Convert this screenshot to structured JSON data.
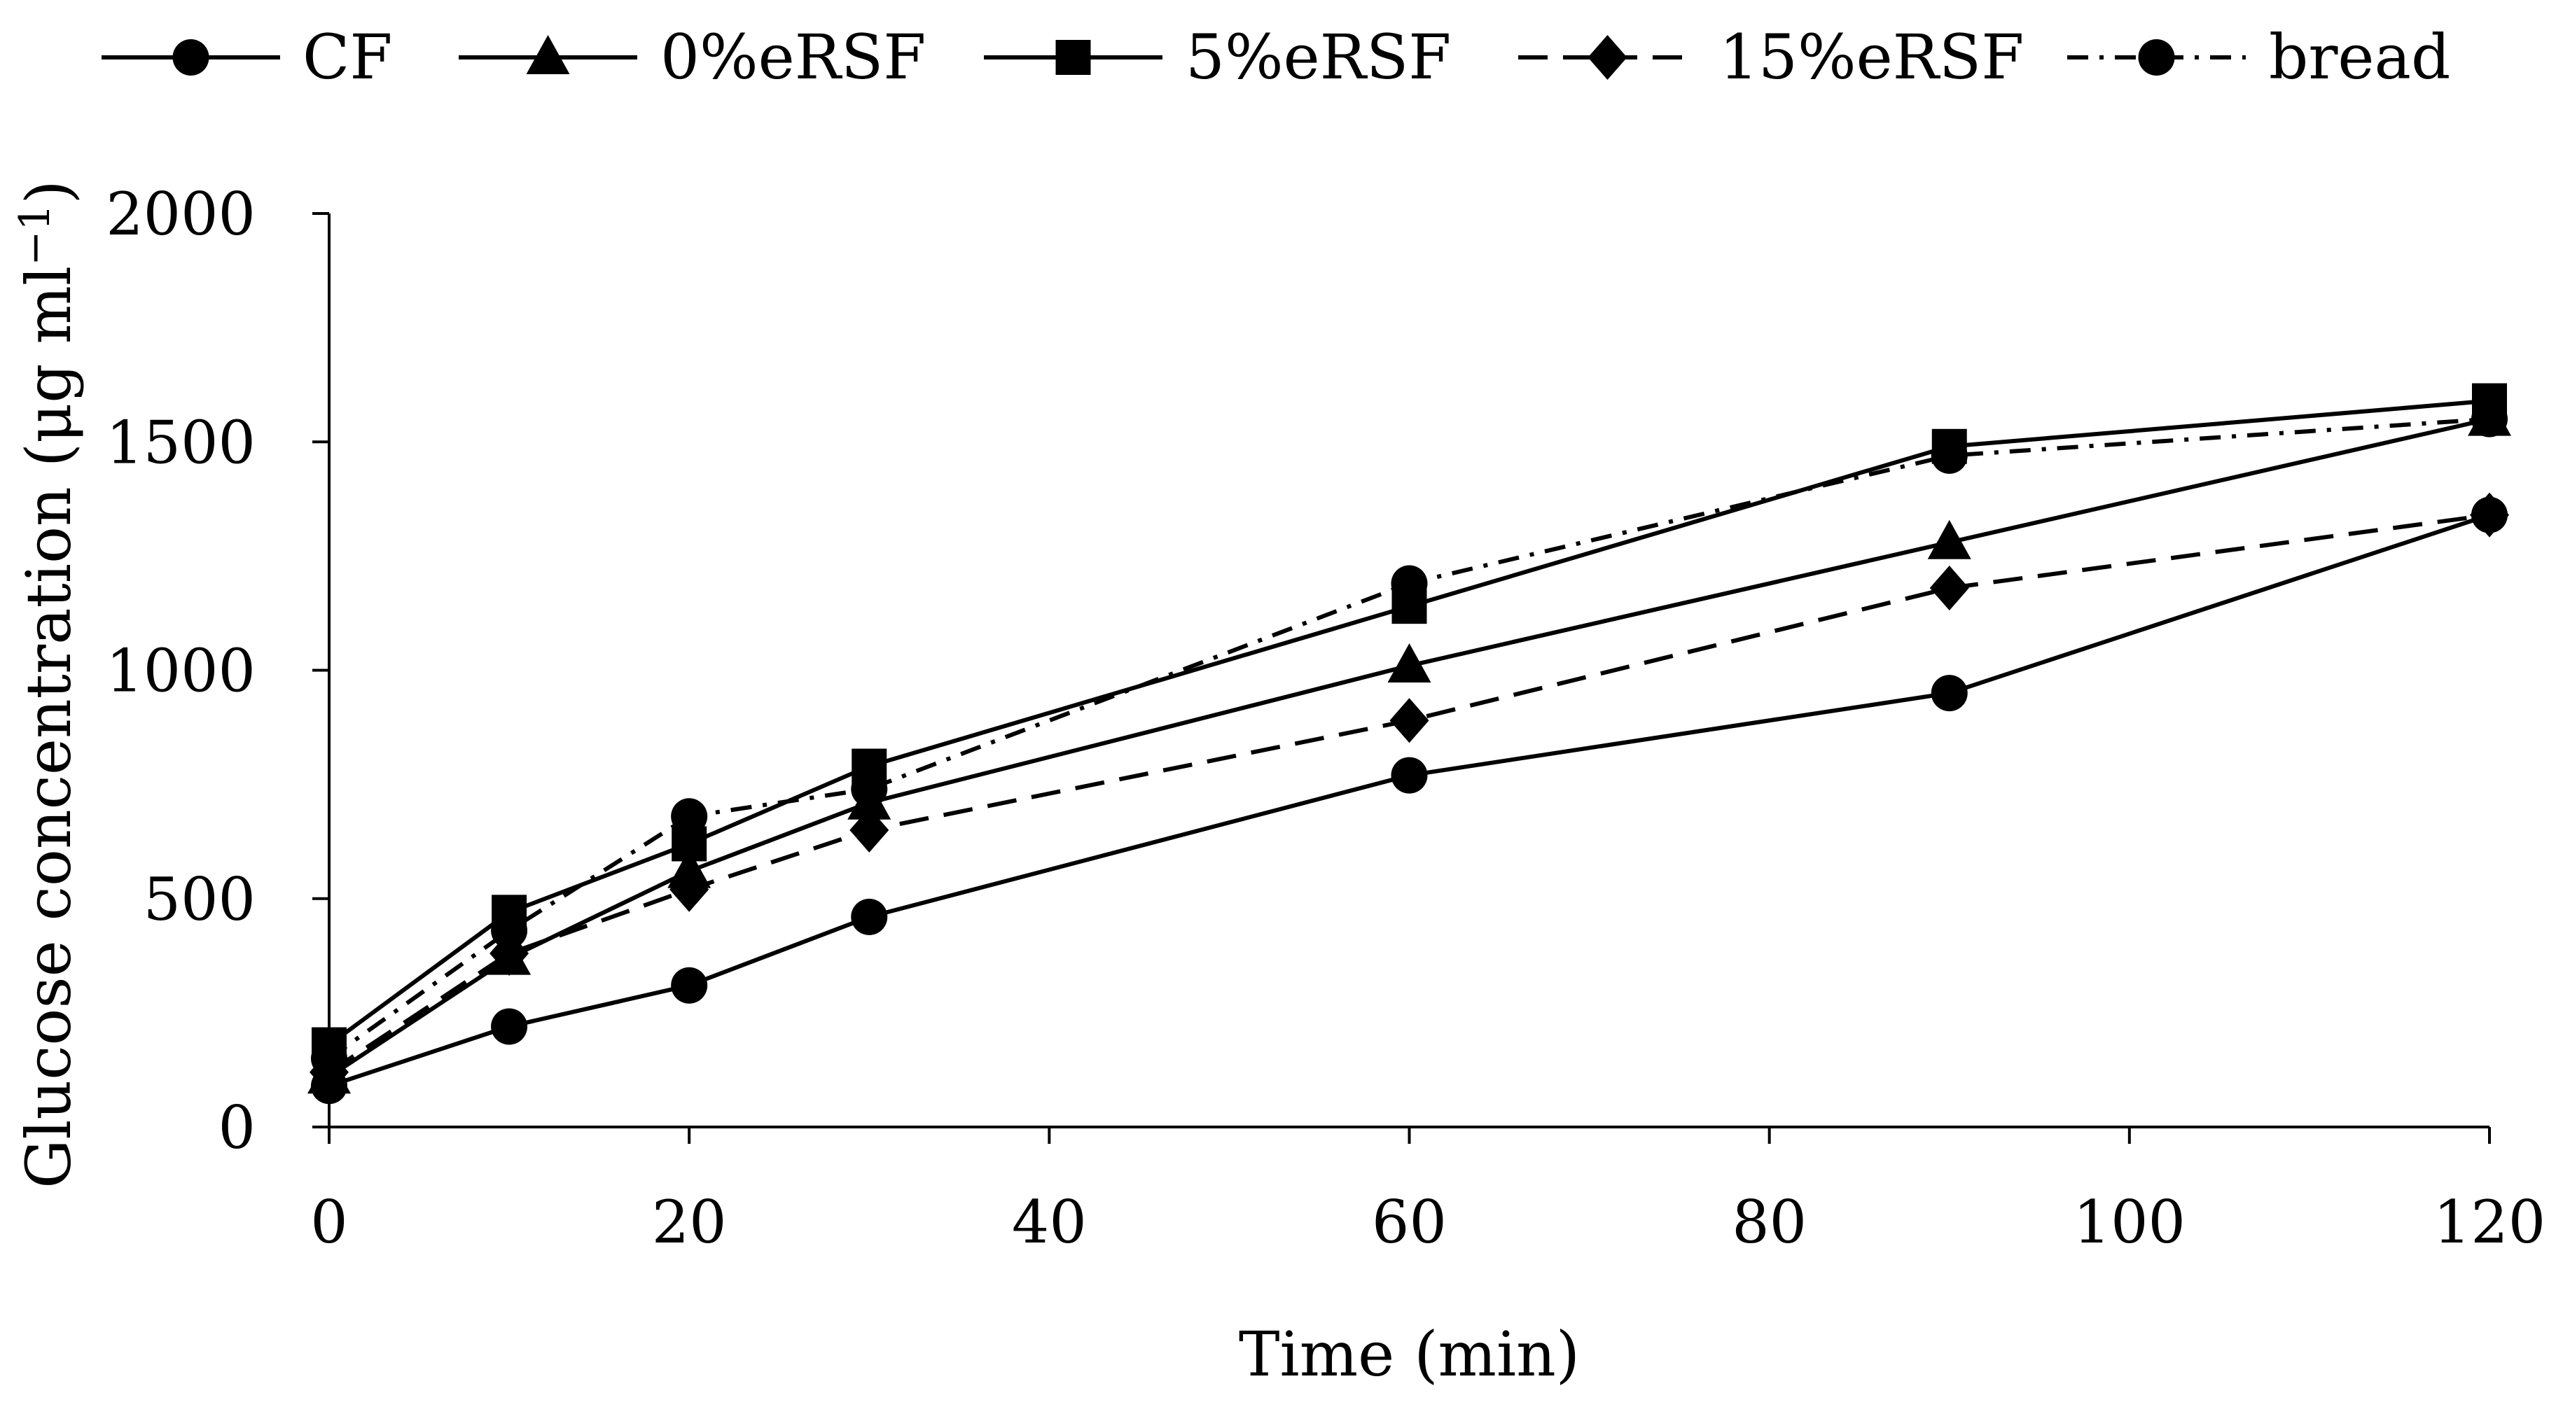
{
  "chart_data": {
    "type": "line",
    "title": "",
    "xlabel": "Time (min)",
    "ylabel": "Glucose concentration (μg ml",
    "ylabel_sup": "−1",
    "ylabel_close": ")",
    "xlim": [
      0,
      120
    ],
    "ylim": [
      0,
      2000
    ],
    "x_ticks": [
      0,
      20,
      40,
      60,
      80,
      100,
      120
    ],
    "y_ticks": [
      0,
      500,
      1000,
      1500,
      2000
    ],
    "grid": false,
    "legend_position": "top",
    "x": [
      0,
      10,
      20,
      30,
      60,
      90,
      120
    ],
    "series": [
      {
        "name": "CF",
        "marker": "circle",
        "dash": "solid",
        "values": [
          90,
          220,
          310,
          460,
          770,
          950,
          1340
        ]
      },
      {
        "name": "0%eRSF",
        "marker": "triangle",
        "dash": "solid",
        "values": [
          110,
          370,
          560,
          710,
          1010,
          1280,
          1550
        ]
      },
      {
        "name": "5%eRSF",
        "marker": "square",
        "dash": "solid",
        "values": [
          180,
          470,
          620,
          790,
          1140,
          1490,
          1590
        ]
      },
      {
        "name": "15%eRSF",
        "marker": "diamond",
        "dash": "dashed",
        "values": [
          120,
          380,
          520,
          650,
          890,
          1180,
          1340
        ]
      },
      {
        "name": "bread",
        "marker": "circle",
        "dash": "dashdot",
        "values": [
          150,
          430,
          680,
          740,
          1190,
          1470,
          1550
        ]
      }
    ]
  }
}
